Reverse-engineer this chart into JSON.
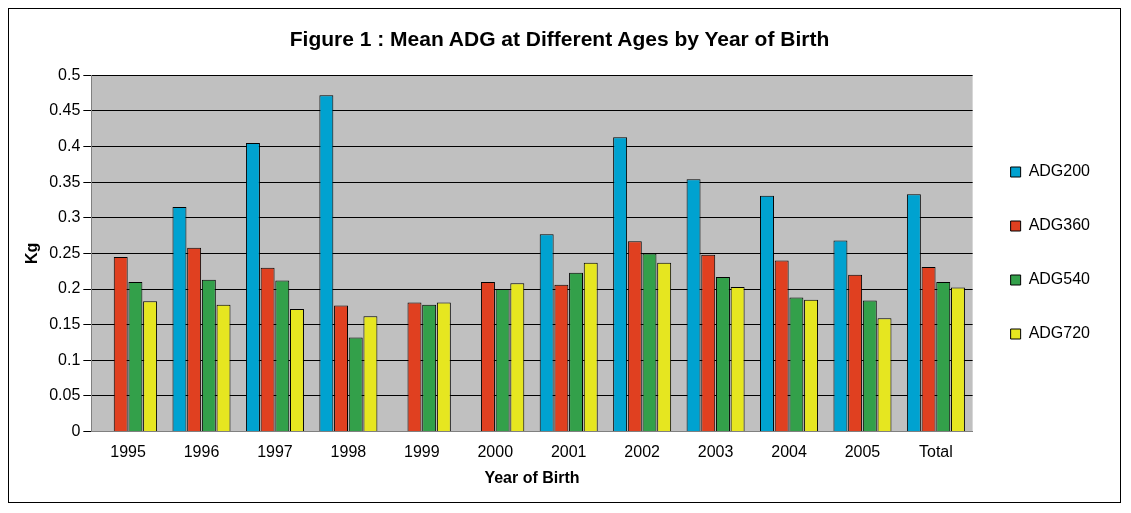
{
  "chart_data": {
    "type": "bar",
    "title": "Figure 1 : Mean ADG at Different Ages by Year of Birth",
    "xlabel": "Year of Birth",
    "ylabel": "Kg",
    "categories": [
      "1995",
      "1996",
      "1997",
      "1998",
      "1999",
      "2000",
      "2001",
      "2002",
      "2003",
      "2004",
      "2005",
      "Total"
    ],
    "series": [
      {
        "name": "ADG200",
        "color": "#00a2d0",
        "values": [
          null,
          0.315,
          0.405,
          0.472,
          null,
          null,
          0.277,
          0.413,
          0.354,
          0.331,
          0.268,
          0.333
        ]
      },
      {
        "name": "ADG360",
        "color": "#e04020",
        "values": [
          0.245,
          0.258,
          0.23,
          0.177,
          0.181,
          0.21,
          0.206,
          0.267,
          0.248,
          0.24,
          0.22,
          0.231
        ]
      },
      {
        "name": "ADG540",
        "color": "#33a04a",
        "values": [
          0.21,
          0.213,
          0.212,
          0.132,
          0.178,
          0.2,
          0.223,
          0.25,
          0.217,
          0.188,
          0.184,
          0.21
        ]
      },
      {
        "name": "ADG720",
        "color": "#e6e620",
        "values": [
          0.183,
          0.178,
          0.172,
          0.162,
          0.181,
          0.208,
          0.237,
          0.237,
          0.203,
          0.185,
          0.159,
          0.202
        ]
      }
    ],
    "ylim": [
      0,
      0.5
    ],
    "yticks": [
      0,
      0.05,
      0.1,
      0.15,
      0.2,
      0.25,
      0.3,
      0.35,
      0.4,
      0.45,
      0.5
    ],
    "grid": "y",
    "legend": "right"
  }
}
